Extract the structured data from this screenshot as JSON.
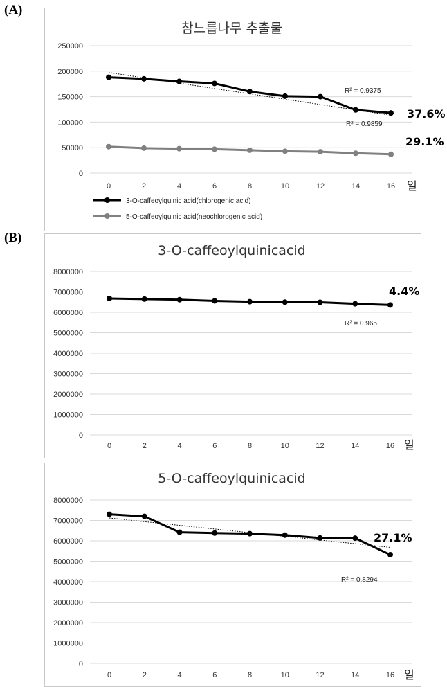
{
  "panel_labels": {
    "a": "(A)",
    "b": "(B)"
  },
  "chart_data": [
    {
      "type": "line",
      "title": "참느릅나무 추출물",
      "x": [
        0,
        2,
        4,
        6,
        8,
        10,
        12,
        14,
        16
      ],
      "x_unit_label": "일",
      "ylim": [
        0,
        250000
      ],
      "yticks": [
        "0",
        "50000",
        "100000",
        "150000",
        "200000",
        "250000"
      ],
      "grid": true,
      "legend_position": "bottom-left",
      "series": [
        {
          "name": "3-O-caffeoylquinic acid(chlorogenic acid)",
          "color": "#000000",
          "values": [
            188000,
            185000,
            180000,
            176000,
            160000,
            151000,
            150000,
            124000,
            118000
          ],
          "trendline": [
            197500,
            187000,
            176500,
            166000,
            155500,
            145000,
            134500,
            124000,
            113500
          ]
        },
        {
          "name": "5-O-caffeoylquinic acid(neochlorogenic acid)",
          "color": "#808080",
          "values": [
            52000,
            49000,
            48000,
            47000,
            45000,
            43000,
            42000,
            39000,
            37000
          ],
          "trendline": [
            51700,
            49900,
            48100,
            46300,
            44500,
            42700,
            40900,
            39100,
            37300
          ]
        }
      ],
      "annotations": [
        {
          "text": "R² = 0.9375",
          "kind": "r2"
        },
        {
          "text": "37.6%",
          "kind": "pct"
        },
        {
          "text": "R² = 0.9859",
          "kind": "r2"
        },
        {
          "text": "29.1%",
          "kind": "pct"
        }
      ]
    },
    {
      "type": "line",
      "title": "3-O-caffeoylquinicacid",
      "x": [
        0,
        2,
        4,
        6,
        8,
        10,
        12,
        14,
        16
      ],
      "x_unit_label": "일",
      "ylim": [
        0,
        8000000
      ],
      "yticks": [
        "0",
        "1000000",
        "2000000",
        "3000000",
        "4000000",
        "5000000",
        "6000000",
        "7000000",
        "8000000"
      ],
      "grid": true,
      "series": [
        {
          "name": "",
          "color": "#000000",
          "values": [
            6680000,
            6650000,
            6620000,
            6560000,
            6520000,
            6500000,
            6490000,
            6420000,
            6360000
          ],
          "trendline": [
            6700000,
            6660000,
            6620000,
            6580000,
            6540000,
            6500000,
            6460000,
            6420000,
            6380000
          ]
        }
      ],
      "annotations": [
        {
          "text": "4.4%",
          "kind": "pct"
        },
        {
          "text": "R² = 0.965",
          "kind": "r2"
        }
      ]
    },
    {
      "type": "line",
      "title": "5-O-caffeoylquinicacid",
      "x": [
        0,
        2,
        4,
        6,
        8,
        10,
        12,
        14,
        16
      ],
      "x_unit_label": "일",
      "ylim": [
        0,
        8000000
      ],
      "yticks": [
        "0",
        "1000000",
        "2000000",
        "3000000",
        "4000000",
        "5000000",
        "6000000",
        "7000000",
        "8000000"
      ],
      "grid": true,
      "series": [
        {
          "name": "",
          "color": "#000000",
          "values": [
            7300000,
            7200000,
            6420000,
            6380000,
            6350000,
            6280000,
            6140000,
            6130000,
            5320000
          ],
          "trendline": [
            7120000,
            6940000,
            6760000,
            6580000,
            6400000,
            6220000,
            6040000,
            5860000,
            5680000
          ]
        }
      ],
      "annotations": [
        {
          "text": "27.1%",
          "kind": "pct"
        },
        {
          "text": "R² = 0.8294",
          "kind": "r2"
        }
      ]
    }
  ]
}
